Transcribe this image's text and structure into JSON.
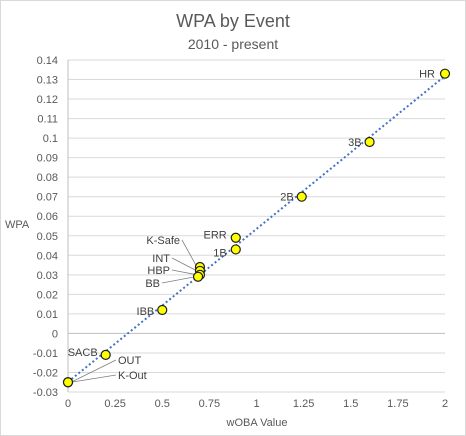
{
  "chart_data": {
    "type": "scatter",
    "title": "WPA by Event",
    "subtitle": "2010 - present",
    "xlabel": "wOBA Value",
    "ylabel": "WPA",
    "xlim": [
      0,
      2
    ],
    "ylim": [
      -0.03,
      0.14
    ],
    "x_ticks": [
      "0",
      "0.25",
      "0.5",
      "0.75",
      "1",
      "1.25",
      "1.5",
      "1.75",
      "2"
    ],
    "y_ticks": [
      "-0.03",
      "-0.02",
      "-0.01",
      "0",
      "0.01",
      "0.02",
      "0.03",
      "0.04",
      "0.05",
      "0.06",
      "0.07",
      "0.08",
      "0.09",
      "0.1",
      "0.11",
      "0.12",
      "0.13",
      "0.14"
    ],
    "grid": "horizontal",
    "trendline": {
      "style": "dotted linear",
      "color": "#4472c4"
    },
    "marker_fill": "#ffff00",
    "marker_stroke": "#1f1f1f",
    "points": [
      {
        "label": "HR",
        "x": 2.0,
        "y": 0.133
      },
      {
        "label": "3B",
        "x": 1.6,
        "y": 0.098
      },
      {
        "label": "2B",
        "x": 1.24,
        "y": 0.07
      },
      {
        "label": "ERR",
        "x": 0.89,
        "y": 0.049
      },
      {
        "label": "1B",
        "x": 0.89,
        "y": 0.043
      },
      {
        "label": "K-Safe",
        "x": 0.7,
        "y": 0.034
      },
      {
        "label": "INT",
        "x": 0.7,
        "y": 0.032
      },
      {
        "label": "HBP",
        "x": 0.7,
        "y": 0.03
      },
      {
        "label": "BB",
        "x": 0.69,
        "y": 0.029
      },
      {
        "label": "IBB",
        "x": 0.5,
        "y": 0.012
      },
      {
        "label": "SACB",
        "x": 0.2,
        "y": -0.011
      },
      {
        "label": "OUT",
        "x": 0.0,
        "y": -0.025
      },
      {
        "label": "K-Out",
        "x": 0.0,
        "y": -0.025
      }
    ]
  }
}
